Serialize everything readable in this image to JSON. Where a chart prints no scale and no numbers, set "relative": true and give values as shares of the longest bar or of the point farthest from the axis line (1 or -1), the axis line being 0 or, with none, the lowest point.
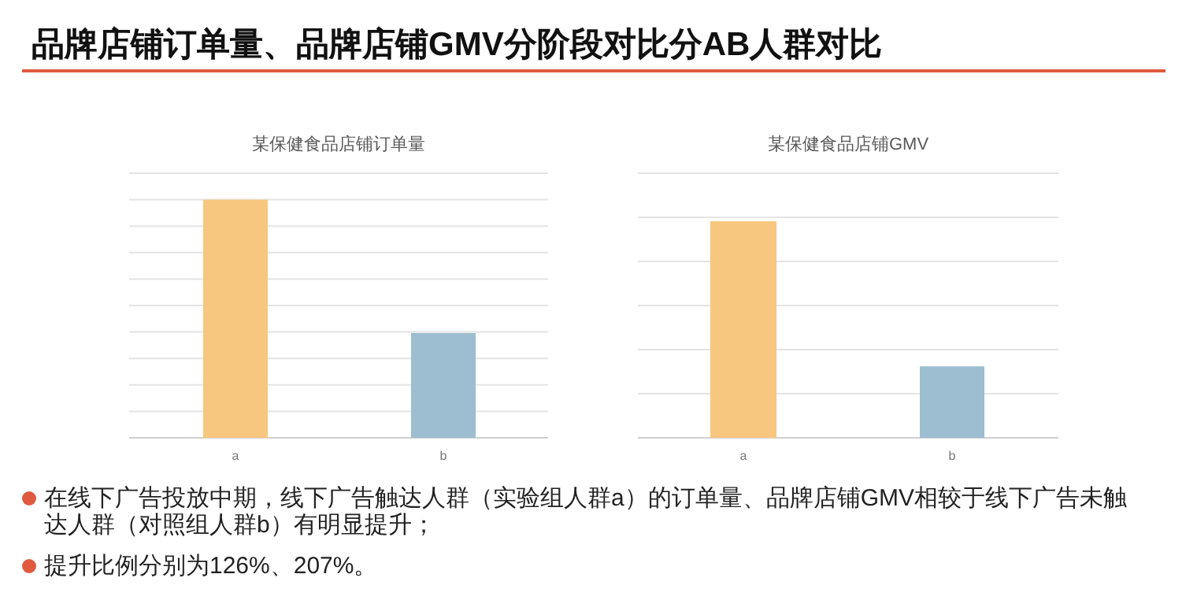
{
  "chart_data": [
    {
      "type": "other",
      "title": "品牌店铺订单量、品牌店铺GMV分阶段对比分AB人群对比",
      "annotations": [
        "在线下广告投放中期，线下广告触达人群（实验组人群a）的订单量、品牌店铺GMV相较于线下广告未触达人群（对照组人群b）有明显提升；",
        "提升比例分别为126%、207%。"
      ]
    },
    {
      "type": "bar",
      "title": "某保健食品店铺订单量",
      "categories": [
        "a",
        "b"
      ],
      "values": [
        1,
        0.44
      ],
      "colors": [
        "#f7c67f",
        "#9dbdd0"
      ],
      "relative": true,
      "grid": "y"
    },
    {
      "type": "bar",
      "title": "某保健食品店铺GMV",
      "categories": [
        "a",
        "b"
      ],
      "values": [
        1,
        0.33
      ],
      "colors": [
        "#f7c67f",
        "#9dbdd0"
      ],
      "relative": true,
      "grid": "y"
    }
  ]
}
